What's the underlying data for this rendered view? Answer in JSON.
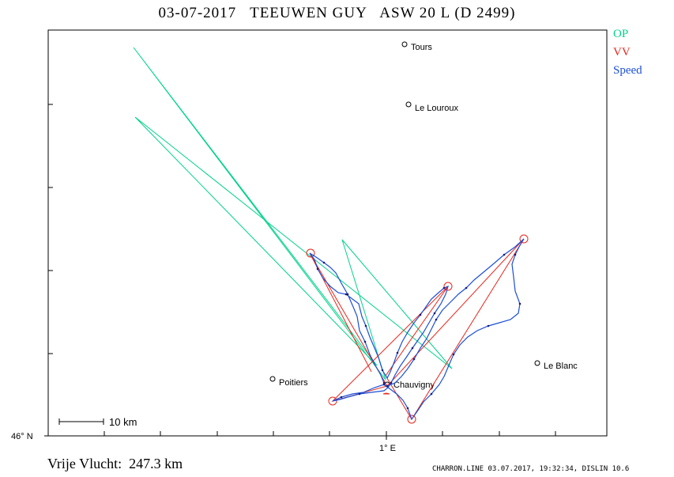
{
  "header": {
    "title": "03-07-2017   TEEUWEN GUY   ASW 20 L (D 2499)"
  },
  "legend": {
    "items": [
      {
        "label": "OP",
        "color": "#00d28c"
      },
      {
        "label": "VV",
        "color": "#e8261c"
      },
      {
        "label": "Speed",
        "color": "#1d4fd6"
      }
    ]
  },
  "axes": {
    "lat_label": "46° N",
    "lon_label": "1° E"
  },
  "scale_bar": {
    "label": "10 km"
  },
  "places": [
    {
      "name": "Tours",
      "icon": "circle-marker-icon"
    },
    {
      "name": "Le Louroux",
      "icon": "circle-marker-icon"
    },
    {
      "name": "Poitiers",
      "icon": "circle-marker-icon"
    },
    {
      "name": "Chauvigny",
      "icon": "circle-marker-icon"
    },
    {
      "name": "Le Blanc",
      "icon": "circle-marker-icon"
    }
  ],
  "footer": {
    "distance": "Vrije Vlucht:  247.3 km",
    "software": "CHARRON.LINE 03.07.2017, 19:32:34, DISLIN 10.6"
  }
}
